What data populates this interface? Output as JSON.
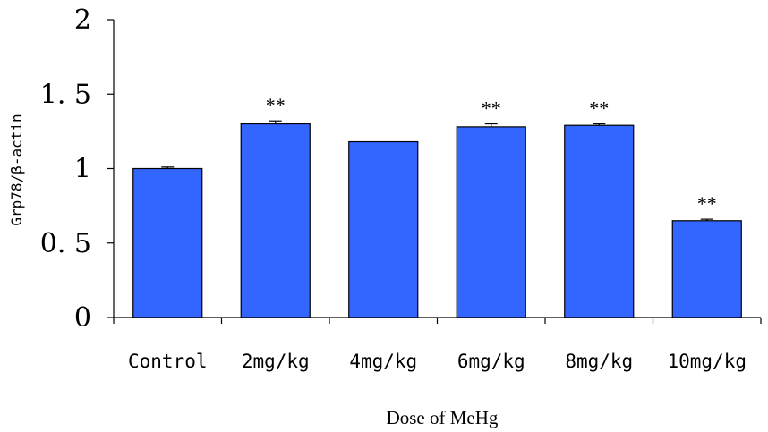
{
  "chart_data": {
    "type": "bar",
    "categories": [
      "Control",
      "2mg/kg",
      "4mg/kg",
      "6mg/kg",
      "8mg/kg",
      "10mg/kg"
    ],
    "values": [
      1.0,
      1.3,
      1.18,
      1.28,
      1.29,
      0.65
    ],
    "errors": [
      0.01,
      0.02,
      0.0,
      0.02,
      0.01,
      0.01
    ],
    "significance": [
      "",
      "**",
      "",
      "**",
      "**",
      "**"
    ],
    "title": "",
    "xlabel": "Dose of MeHg",
    "ylabel": "Grp78/β-actin",
    "ylim": [
      0,
      2
    ],
    "yticks": [
      0,
      0.5,
      1,
      1.5,
      2
    ],
    "ytick_labels": [
      "0",
      "0. 5",
      "1",
      "1. 5",
      "2"
    ],
    "grid": false,
    "legend": "none",
    "colors": {
      "bar": "#3366ff",
      "bar_edge": "#000000",
      "axis": "#000000"
    }
  }
}
